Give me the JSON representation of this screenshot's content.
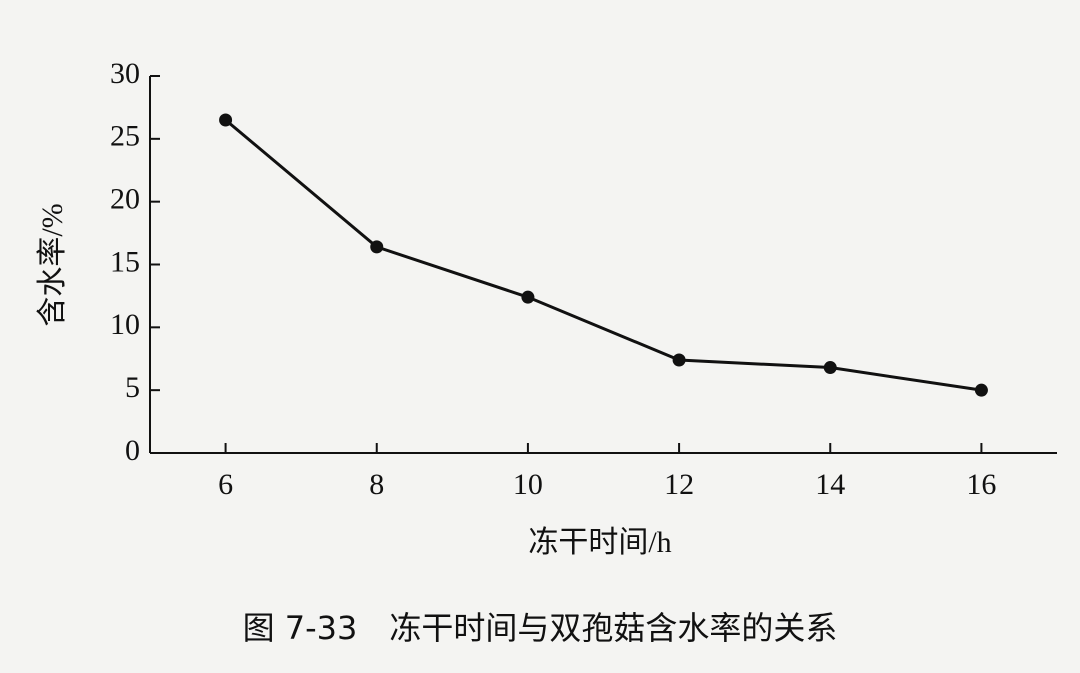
{
  "chart_data": {
    "type": "line",
    "x_label": "冻干时间/h",
    "y_label": "含水率/%",
    "caption": "图 7-33　冻干时间与双孢菇含水率的关系",
    "x": [
      6,
      8,
      10,
      12,
      14,
      16
    ],
    "series": [
      {
        "color": "#111111",
        "values": [
          26.5,
          16.4,
          12.4,
          7.4,
          6.8,
          5.0
        ]
      }
    ],
    "xlim": [
      5,
      17
    ],
    "xticks": [
      6,
      8,
      10,
      12,
      14,
      16
    ],
    "ylim": [
      0,
      30
    ],
    "yticks": [
      0,
      5,
      10,
      15,
      20,
      25,
      30
    ]
  }
}
